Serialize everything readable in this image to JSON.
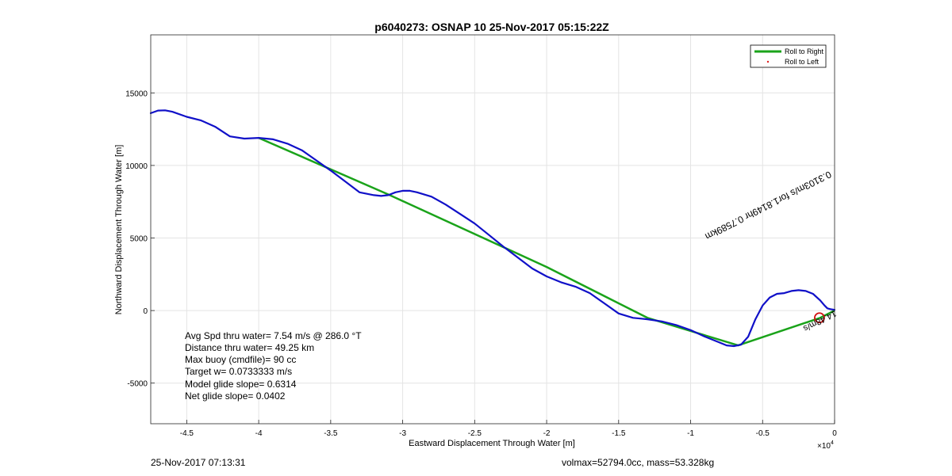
{
  "chart_data": {
    "type": "line",
    "title": "p6040273: OSNAP 10 25-Nov-2017 05:15:22Z",
    "xlabel": "Eastward Displacement Through Water [m]",
    "ylabel": "Northward Displacement Through Water [m]",
    "x_exponent": "×10",
    "x_exponent_power": "4",
    "xlim": [
      -4.75,
      0
    ],
    "ylim": [
      -7800,
      19000
    ],
    "grid": true,
    "x_ticks": [
      -4.5,
      -4,
      -3.5,
      -3,
      -2.5,
      -2,
      -1.5,
      -1,
      -0.5,
      0
    ],
    "x_tick_labels": [
      "-4.5",
      "-4",
      "-3.5",
      "-3",
      "-2.5",
      "-2",
      "-1.5",
      "-1",
      "-0.5",
      "0"
    ],
    "y_ticks": [
      -5000,
      0,
      5000,
      10000,
      15000
    ],
    "y_tick_labels": [
      "-5000",
      "0",
      "5000",
      "10000",
      "15000"
    ],
    "legend_position": "top-right",
    "series": [
      {
        "name": "Roll to Right",
        "color": "#1aa31a",
        "x": [
          -4.0,
          -3.1,
          -2.0,
          -1.3,
          -0.67,
          -0.1,
          0
        ],
        "y": [
          11900,
          8000,
          3000,
          -500,
          -2400,
          -500,
          0
        ]
      },
      {
        "name": "Roll to Left",
        "color": "#e02020",
        "x": [],
        "y": []
      }
    ],
    "track": {
      "color": "#1010c8",
      "x": [
        -4.75,
        -4.7,
        -4.65,
        -4.6,
        -4.5,
        -4.4,
        -4.3,
        -4.2,
        -4.1,
        -4.0,
        -3.9,
        -3.8,
        -3.7,
        -3.6,
        -3.5,
        -3.4,
        -3.3,
        -3.2,
        -3.15,
        -3.1,
        -3.05,
        -3.0,
        -2.95,
        -2.9,
        -2.8,
        -2.7,
        -2.6,
        -2.5,
        -2.4,
        -2.3,
        -2.2,
        -2.1,
        -2.0,
        -1.9,
        -1.8,
        -1.7,
        -1.6,
        -1.5,
        -1.4,
        -1.35,
        -1.3,
        -1.2,
        -1.1,
        -1.0,
        -0.9,
        -0.8,
        -0.75,
        -0.7,
        -0.65,
        -0.6,
        -0.55,
        -0.5,
        -0.45,
        -0.4,
        -0.35,
        -0.3,
        -0.25,
        -0.2,
        -0.15,
        -0.1,
        -0.07,
        -0.05,
        -0.03,
        0
      ],
      "y": [
        13600,
        13780,
        13800,
        13700,
        13350,
        13100,
        12650,
        12000,
        11850,
        11900,
        11800,
        11500,
        11050,
        10350,
        9650,
        8900,
        8150,
        7950,
        7900,
        7950,
        8150,
        8250,
        8250,
        8150,
        7850,
        7300,
        6650,
        6000,
        5200,
        4400,
        3650,
        2900,
        2350,
        1950,
        1650,
        1200,
        500,
        -200,
        -500,
        -550,
        -600,
        -750,
        -1000,
        -1350,
        -1800,
        -2200,
        -2400,
        -2450,
        -2350,
        -1800,
        -600,
        350,
        900,
        1150,
        1200,
        1350,
        1400,
        1350,
        1150,
        700,
        350,
        150,
        100,
        50
      ]
    },
    "marker_circle": {
      "x": -0.105,
      "y": -500,
      "color": "#d01010"
    },
    "annotation": {
      "text": "0.3103m/s for1.8149hr 0.7589km",
      "overlap_text": "14.48m/s",
      "rotation_deg": 153
    },
    "stats": [
      "Avg Spd thru water=  7.54 m/s @ 286.0 °T",
      "Distance thru water= 49.25 km",
      "Max buoy (cmdfile)= 90 cc",
      "Target w= 0.0733333 m/s",
      "Model glide slope= 0.6314",
      "Net glide slope= 0.0402"
    ]
  },
  "footer": {
    "left": "25-Nov-2017 07:13:31",
    "right": "volmax=52794.0cc, mass=53.328kg"
  }
}
